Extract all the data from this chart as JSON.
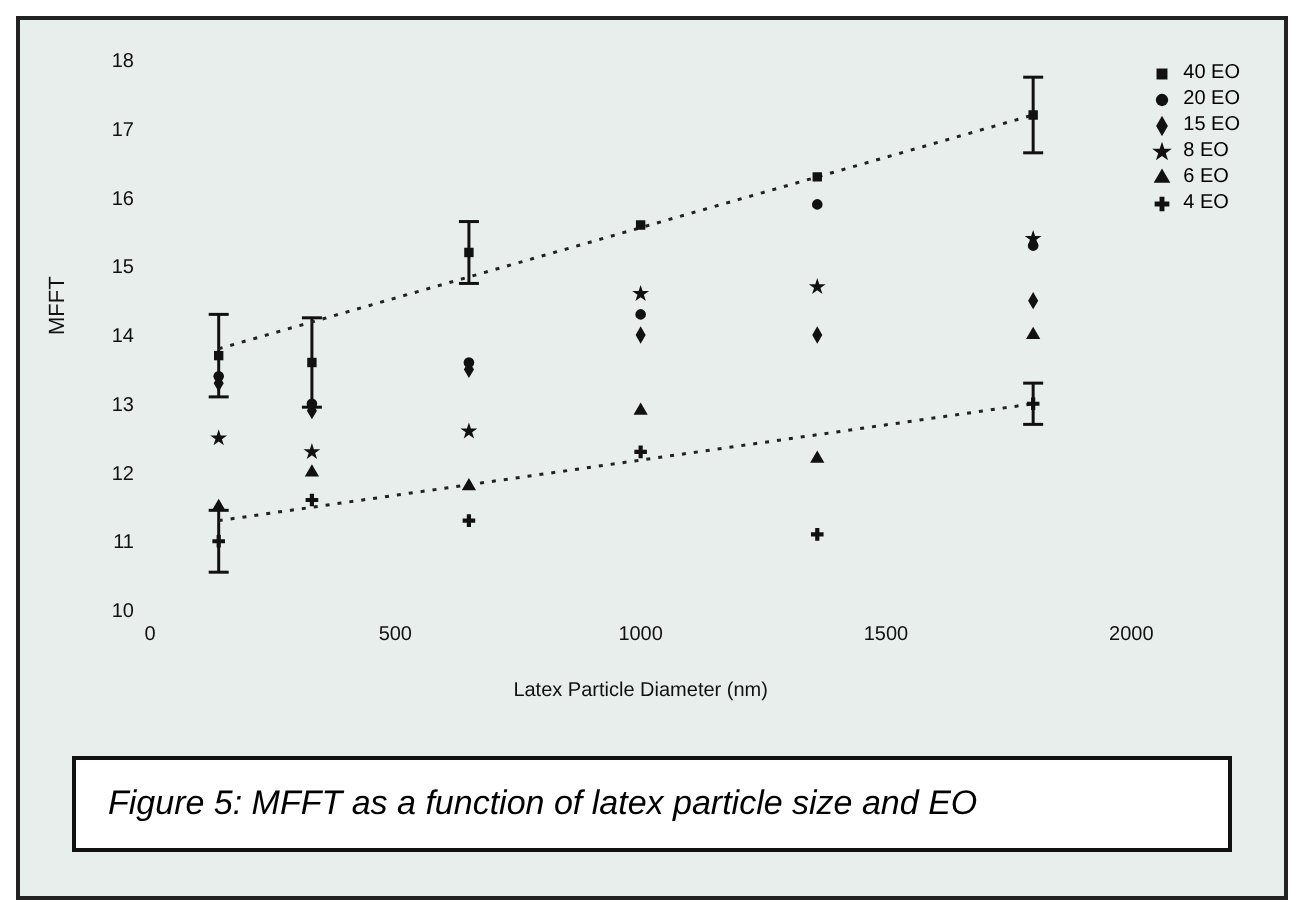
{
  "chart_data": {
    "type": "scatter",
    "xlabel": "Latex Particle Diameter (nm)",
    "ylabel": "MFFT",
    "x": [
      140,
      330,
      650,
      1000,
      1360,
      1800
    ],
    "series": [
      {
        "name": "40 EO",
        "color": "#111111",
        "marker": "square",
        "values": [
          13.7,
          13.6,
          15.2,
          15.6,
          16.3,
          17.2
        ],
        "errors": [
          0.6,
          0.65,
          0.45,
          null,
          null,
          0.55
        ]
      },
      {
        "name": "20 EO",
        "color": "#111111",
        "marker": "circle",
        "values": [
          13.4,
          13.0,
          13.6,
          14.3,
          15.9,
          15.3
        ]
      },
      {
        "name": "15 EO",
        "color": "#111111",
        "marker": "diamond",
        "values": [
          13.3,
          12.9,
          13.5,
          14.0,
          14.0,
          14.5
        ]
      },
      {
        "name": "8 EO",
        "color": "#111111",
        "marker": "star",
        "values": [
          12.5,
          12.3,
          12.6,
          14.6,
          14.7,
          15.4
        ]
      },
      {
        "name": "6 EO",
        "color": "#111111",
        "marker": "triangle",
        "values": [
          11.5,
          12.0,
          11.8,
          12.9,
          12.2,
          14.0
        ]
      },
      {
        "name": "4 EO",
        "color": "#111111",
        "marker": "cross",
        "values": [
          11.0,
          11.6,
          11.3,
          12.3,
          11.1,
          13.0
        ],
        "errors": [
          0.45,
          null,
          null,
          null,
          null,
          0.3
        ]
      },
      {
        "type": "line",
        "color": "#222222",
        "line_style": "dotted",
        "values": [
          13.8,
          null,
          null,
          null,
          null,
          17.2
        ]
      },
      {
        "type": "line",
        "color": "#222222",
        "line_style": "dotted",
        "values": [
          11.3,
          null,
          null,
          null,
          null,
          13.0
        ]
      }
    ],
    "xlim": [
      0,
      2000
    ],
    "xticks": [
      0,
      500,
      1000,
      1500,
      2000
    ],
    "ylim": [
      10,
      18
    ],
    "yticks": [
      10,
      11,
      12,
      13,
      14,
      15,
      16,
      17,
      18
    ],
    "grid": false,
    "legend": "top right",
    "annotations": [
      "Figure 5: MFFT as a function of latex particle size and EO"
    ]
  }
}
